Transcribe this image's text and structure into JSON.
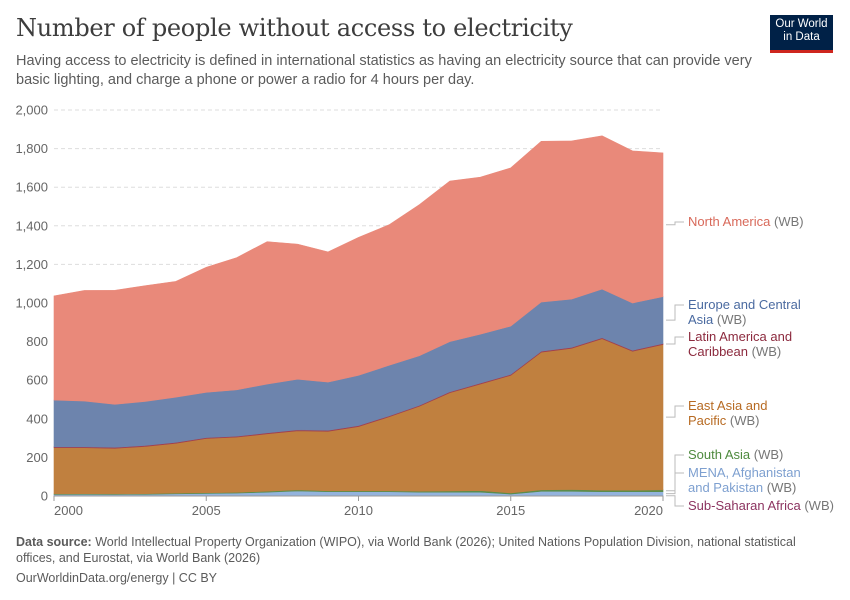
{
  "header": {
    "title": "Number of people without access to electricity",
    "subtitle": "Having access to electricity is defined in international statistics as having an electricity source that can provide very basic lighting, and charge a phone or power a radio for 4 hours per day.",
    "logo": "Our World in Data"
  },
  "footer": {
    "source_label": "Data source:",
    "source_text": "World Intellectual Property Organization (WIPO), via World Bank (2026); United Nations Population Division, national statistical offices, and Eurostat, via World Bank (2026)",
    "url": "OurWorldinData.org/energy | CC BY"
  },
  "chart_data": {
    "type": "area",
    "stacked": true,
    "grid": true,
    "ylim": [
      0,
      2000
    ],
    "xlim": [
      2000,
      2020
    ],
    "y_ticks": [
      "0",
      "200",
      "400",
      "600",
      "800",
      "1,000",
      "1,200",
      "1,400",
      "1,600",
      "1,800",
      "2,000"
    ],
    "y_tick_values": [
      0,
      200,
      400,
      600,
      800,
      1000,
      1200,
      1400,
      1600,
      1800,
      2000
    ],
    "x_ticks": [
      "2000",
      "2005",
      "2010",
      "2015",
      "2020"
    ],
    "x_tick_values": [
      2000,
      2005,
      2010,
      2015,
      2020
    ],
    "x": [
      2000,
      2001,
      2002,
      2003,
      2004,
      2005,
      2006,
      2007,
      2008,
      2009,
      2010,
      2011,
      2012,
      2013,
      2014,
      2015,
      2016,
      2017,
      2018,
      2019,
      2020
    ],
    "legend_placement": "right",
    "series": [
      {
        "name": "Sub-Saharan Africa",
        "suffix": "(WB)",
        "color": "#8c4569",
        "label_color": "#8c3460",
        "values": [
          2,
          2,
          2,
          2,
          2,
          2,
          2,
          2,
          2,
          2,
          2,
          2,
          2,
          2,
          2,
          2,
          2,
          2,
          2,
          2,
          2
        ]
      },
      {
        "name": "MENA, Afghanistan and Pakistan",
        "name_lines": [
          "MENA, Afghanistan",
          "and Pakistan"
        ],
        "suffix": "(WB)",
        "color": "#93b3dd",
        "label_color": "#7ea0d0",
        "values": [
          6,
          7,
          6,
          7,
          9,
          11,
          13,
          18,
          24,
          20,
          20,
          20,
          18,
          18,
          18,
          8,
          22,
          22,
          20,
          20,
          20
        ]
      },
      {
        "name": "South Asia",
        "suffix": "(WB)",
        "color": "#5b8c4a",
        "label_color": "#4e8a3e",
        "values": [
          3,
          3,
          3,
          3,
          4,
          4,
          4,
          5,
          6,
          5,
          5,
          5,
          5,
          6,
          8,
          6,
          8,
          10,
          8,
          8,
          10
        ]
      },
      {
        "name": "East Asia and Pacific",
        "name_lines": [
          "East Asia and",
          "Pacific"
        ],
        "suffix": "(WB)",
        "color": "#c0803f",
        "label_color": "#b76a22",
        "values": [
          239,
          238,
          236,
          245,
          258,
          281,
          286,
          297,
          306,
          308,
          333,
          383,
          440,
          509,
          552,
          609,
          713,
          731,
          785,
          720,
          753
        ]
      },
      {
        "name": "Latin America and Caribbean",
        "name_lines": [
          "Latin America and",
          "Caribbean"
        ],
        "suffix": "(WB)",
        "color": "#a2404f",
        "label_color": "#8c2a3e",
        "values": [
          5,
          5,
          5,
          5,
          5,
          5,
          5,
          5,
          5,
          5,
          5,
          5,
          5,
          5,
          5,
          5,
          5,
          5,
          5,
          5,
          5
        ]
      },
      {
        "name": "Europe and Central Asia",
        "name_lines": [
          "Europe and Central",
          "Asia"
        ],
        "suffix": "(WB)",
        "color": "#6d84ad",
        "label_color": "#4a6aa0",
        "values": [
          242,
          237,
          223,
          228,
          234,
          234,
          240,
          253,
          262,
          250,
          260,
          262,
          257,
          260,
          253,
          250,
          255,
          250,
          252,
          245,
          243
        ]
      },
      {
        "name": "North America",
        "suffix": "(WB)",
        "color": "#e9897a",
        "label_color": "#d8695a",
        "values": [
          540,
          573,
          591,
          600,
          600,
          648,
          685,
          738,
          700,
          675,
          715,
          728,
          783,
          832,
          814,
          820,
          833,
          820,
          794,
          788,
          745
        ]
      }
    ]
  }
}
